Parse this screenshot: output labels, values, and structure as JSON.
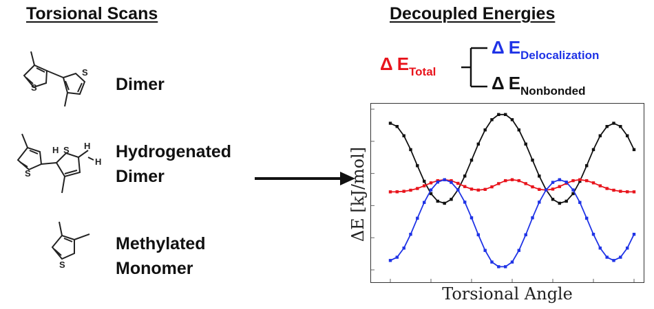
{
  "left_panel": {
    "heading": "Torsional Scans",
    "molecules": [
      {
        "label_lines": [
          "Dimer"
        ]
      },
      {
        "label_lines": [
          "Hydrogenated",
          "Dimer"
        ]
      },
      {
        "label_lines": [
          "Methylated",
          "Monomer"
        ]
      }
    ],
    "atoms": {
      "sulfur": "S",
      "hydrogen": "H"
    }
  },
  "right_panel": {
    "heading": "Decoupled Energies",
    "terms": {
      "total": {
        "delta": "Δ",
        "symbol": "E",
        "subscript": "Total",
        "color": "#e8141c"
      },
      "delocalization": {
        "delta": "Δ",
        "symbol": "E",
        "subscript": "Delocalization",
        "color": "#1f33e6"
      },
      "nonbonded": {
        "delta": "Δ",
        "symbol": "E",
        "subscript": "Nonbonded",
        "color": "#111111"
      }
    }
  },
  "chart_data": {
    "type": "line",
    "xlabel": "Torsional Angle",
    "ylabel": "ΔE [kJ/mol]",
    "x_ticks_labeled": false,
    "y_ticks_labeled": false,
    "x": [
      0,
      5,
      10,
      15,
      20,
      25,
      30,
      35,
      40,
      45,
      50,
      55,
      60,
      65,
      70,
      75,
      80,
      85,
      90,
      95,
      100,
      105,
      110,
      115,
      120,
      125,
      130,
      135,
      140,
      145,
      150,
      155,
      160,
      165,
      170,
      175,
      180
    ],
    "series": [
      {
        "color": "#111111",
        "values": [
          0.87,
          0.829,
          0.711,
          0.534,
          0.329,
          0.13,
          -0.028,
          -0.124,
          -0.15,
          -0.1,
          0.022,
          0.197,
          0.4,
          0.605,
          0.785,
          0.916,
          0.982,
          0.982,
          0.916,
          0.785,
          0.605,
          0.4,
          0.197,
          0.022,
          -0.1,
          -0.15,
          -0.124,
          -0.028,
          0.13,
          0.329,
          0.534,
          0.711,
          0.829,
          0.87,
          0.829,
          0.711,
          0.534
        ]
      },
      {
        "color": "#e8141c",
        "values": [
          -0.005,
          -0.004,
          0.002,
          0.016,
          0.038,
          0.072,
          0.11,
          0.138,
          0.15,
          0.138,
          0.104,
          0.063,
          0.03,
          0.018,
          0.027,
          0.059,
          0.1,
          0.138,
          0.15,
          0.138,
          0.1,
          0.059,
          0.027,
          0.018,
          0.03,
          0.063,
          0.104,
          0.138,
          0.15,
          0.138,
          0.11,
          0.072,
          0.038,
          0.016,
          0.002,
          -0.004,
          -0.005
        ]
      },
      {
        "color": "#1f33e6",
        "values": [
          -0.88,
          -0.839,
          -0.722,
          -0.546,
          -0.341,
          -0.14,
          0.02,
          0.12,
          0.15,
          0.116,
          0.02,
          -0.136,
          -0.336,
          -0.552,
          -0.752,
          -0.9,
          -0.96,
          -0.96,
          -0.9,
          -0.752,
          -0.552,
          -0.336,
          -0.136,
          0.02,
          0.116,
          0.15,
          0.12,
          0.02,
          -0.14,
          -0.341,
          -0.546,
          -0.722,
          -0.839,
          -0.88,
          -0.839,
          -0.722,
          -0.546
        ]
      }
    ],
    "ylim": [
      -1.0,
      1.05
    ],
    "grid": false,
    "legend": "none"
  }
}
